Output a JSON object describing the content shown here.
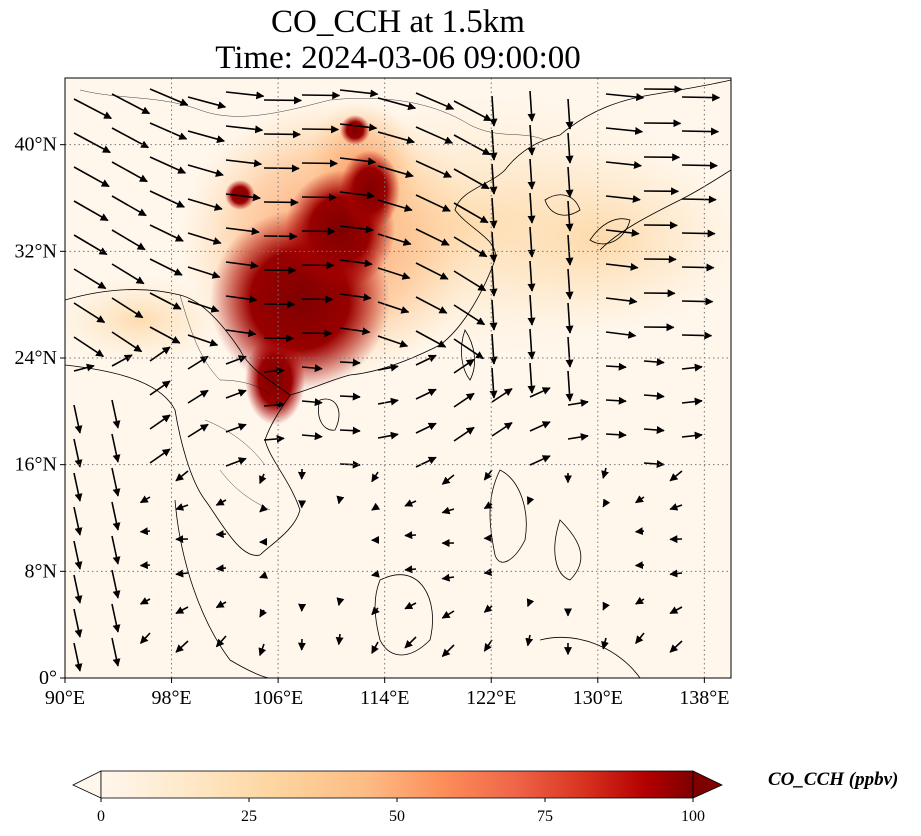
{
  "title": {
    "line1": "CO_CCH at 1.5km",
    "line2": "Time: 2024-03-06 09:00:00"
  },
  "map": {
    "variable": "CO_CCH",
    "level": "1.5km",
    "time": "2024-03-06 09:00:00",
    "lon_range": [
      90,
      140
    ],
    "lat_range": [
      0,
      45
    ],
    "lon_ticks": [
      "90°E",
      "98°E",
      "106°E",
      "114°E",
      "122°E",
      "130°E",
      "138°E"
    ],
    "lon_tick_values": [
      90,
      98,
      106,
      114,
      122,
      130,
      138
    ],
    "lat_ticks": [
      "0°",
      "8°N",
      "16°N",
      "24°N",
      "32°N",
      "40°N"
    ],
    "lat_tick_values": [
      0,
      8,
      16,
      24,
      32,
      40
    ],
    "gridlines": "dotted",
    "colormap": "OrRd",
    "colors": {
      "low": "#fff7ec",
      "mid_low": "#fdd49e",
      "mid": "#fc8d59",
      "mid_high": "#d7301f",
      "high": "#7f0000"
    }
  },
  "colorbar": {
    "label": "CO_CCH (ppbv)",
    "min": 0,
    "max": 100,
    "ticks": [
      "0",
      "25",
      "50",
      "75",
      "100"
    ],
    "tick_values": [
      0,
      25,
      50,
      75,
      100
    ],
    "extend": "both"
  }
}
